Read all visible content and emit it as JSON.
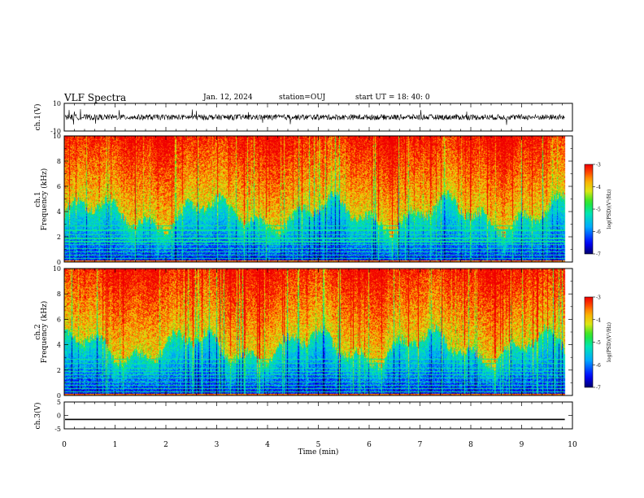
{
  "header": {
    "title": "VLF Spectra",
    "date": "Jan. 12, 2024",
    "station": "station=OUJ",
    "start": "start UT = 18: 40: 0"
  },
  "chart_data": [
    {
      "type": "line",
      "panel": "ch1-waveform",
      "ylabel": "ch.1(V)",
      "ylim": [
        -10,
        10
      ],
      "xlim": [
        0,
        10
      ],
      "yticks": [
        "10",
        "-10"
      ],
      "description_values": {
        "baseline": 0,
        "typical_amplitude": 2,
        "spike_amplitude": 6,
        "data_end_min": 9.85
      }
    },
    {
      "type": "heatmap",
      "panel": "ch1-spectrogram",
      "ylabel_channel": "ch.1",
      "ylabel": "Frequency (kHz)",
      "ylim": [
        0,
        10
      ],
      "yticks": [
        "0",
        "2",
        "4",
        "6",
        "8",
        "10"
      ],
      "xlim": [
        0,
        10
      ],
      "data_end_min": 9.85,
      "colorbar": {
        "label": "log(PSD)(V²/Hz)",
        "range": [
          -7,
          -3
        ],
        "ticks": [
          "-3",
          "-4",
          "-5",
          "-6",
          "-7"
        ]
      }
    },
    {
      "type": "heatmap",
      "panel": "ch2-spectrogram",
      "ylabel_channel": "ch.2",
      "ylabel": "Frequency (kHz)",
      "ylim": [
        0,
        10
      ],
      "yticks": [
        "0",
        "2",
        "4",
        "6",
        "8",
        "10"
      ],
      "xlim": [
        0,
        10
      ],
      "data_end_min": 9.85,
      "colorbar": {
        "label": "log(PSD)(V²/Hz)",
        "range": [
          -7,
          -3
        ],
        "ticks": [
          "-3",
          "-4",
          "-5",
          "-6",
          "-7"
        ]
      }
    },
    {
      "type": "line",
      "panel": "ch3-waveform",
      "ylabel": "ch.3(V)",
      "ylim": [
        -5,
        5
      ],
      "yticks": [
        "5",
        "0",
        "-5"
      ],
      "xlim": [
        0,
        10
      ],
      "xlabel": "Time (min)",
      "xticks": [
        "0",
        "1",
        "2",
        "3",
        "4",
        "5",
        "6",
        "7",
        "8",
        "9",
        "10"
      ],
      "description_values": {
        "constant_value": -1.5,
        "data_end_min": 9.85
      }
    }
  ]
}
